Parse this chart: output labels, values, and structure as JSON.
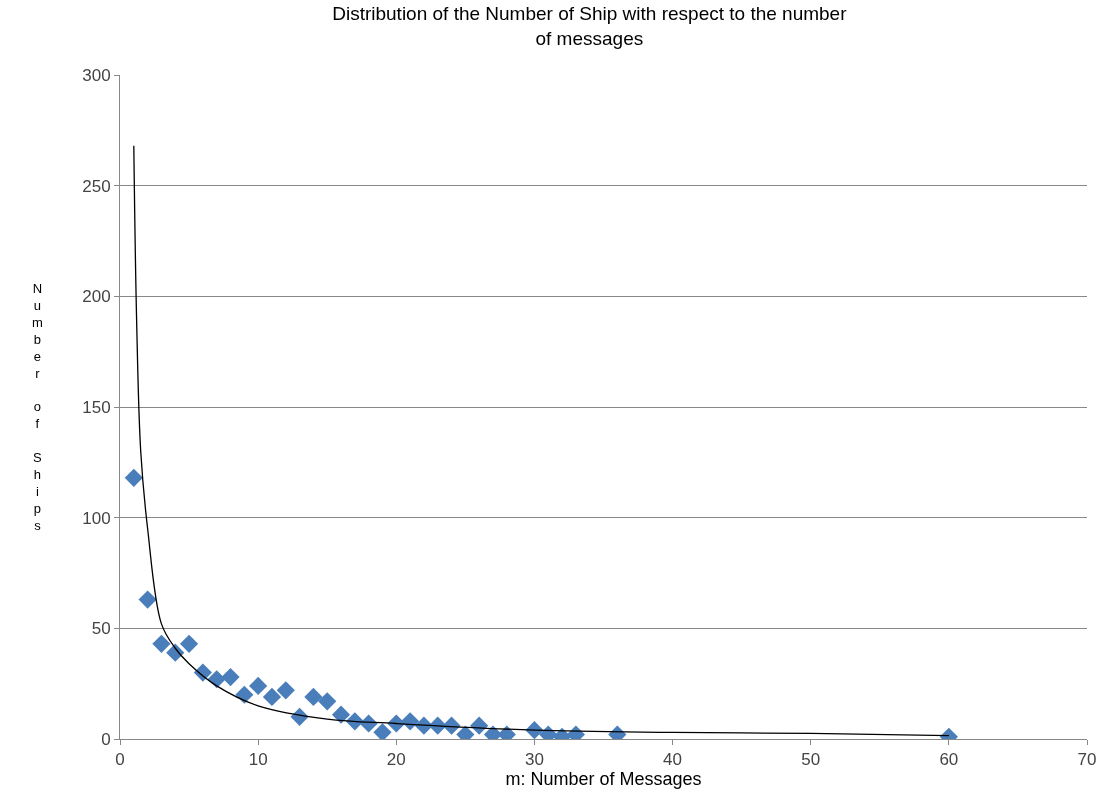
{
  "chart_data": {
    "type": "scatter",
    "title": "Distribution of the Number of Ship with respect to the number of messages",
    "xlabel": "m: Number of Messages",
    "ylabel": "Number of Ships",
    "series": [
      {
        "color": "#4a7ebb",
        "marker": "diamond",
        "x": [
          1,
          2,
          3,
          4,
          5,
          6,
          7,
          8,
          9,
          10,
          11,
          12,
          13,
          14,
          15,
          16,
          17,
          18,
          19,
          20,
          21,
          22,
          23,
          24,
          25,
          26,
          27,
          28,
          30,
          31,
          32,
          33,
          36,
          60
        ],
        "values": [
          118,
          63,
          43,
          39,
          43,
          30,
          27,
          28,
          20,
          24,
          19,
          22,
          10,
          19,
          17,
          11,
          8,
          7,
          3,
          7,
          8,
          6,
          6,
          6,
          2,
          6,
          2,
          2,
          4,
          2,
          1,
          2,
          2,
          1
        ]
      },
      {
        "type": "line",
        "color": "#000000",
        "marker": "none",
        "x": [
          1,
          1.2,
          1.5,
          2,
          3,
          4,
          5,
          7,
          10,
          15,
          20,
          30,
          40,
          50,
          60
        ],
        "values": [
          268,
          190,
          130,
          95,
          52,
          41,
          34,
          24,
          15,
          9,
          7,
          4,
          3,
          2.5,
          1.5
        ]
      }
    ],
    "xlim": [
      0,
      70
    ],
    "xticks": [
      0,
      10,
      20,
      30,
      40,
      50,
      60,
      70
    ],
    "ylim": [
      0,
      300
    ],
    "yticks": [
      0,
      50,
      100,
      150,
      200,
      250,
      300
    ],
    "grid": "y"
  }
}
